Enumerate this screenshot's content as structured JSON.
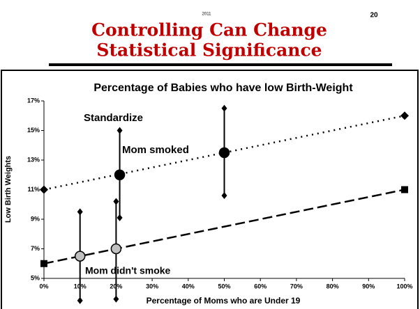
{
  "header": {
    "year": "2011",
    "page_number": "20",
    "title_lines": [
      "Controlling Can Change",
      "Statistical Significance"
    ]
  },
  "chart_data": {
    "type": "line",
    "title": "Percentage of Babies who have low Birth-Weight",
    "x_label": "Percentage of Moms who are Under 19",
    "y_label": "Low Birth Weights",
    "annotations": [
      "Standardize",
      "Mom smoked",
      "Mom didn't smoke"
    ],
    "xlim": [
      0,
      100
    ],
    "xticks": [
      {
        "value": 0,
        "label": "0%"
      },
      {
        "value": 10,
        "label": "10%"
      },
      {
        "value": 20,
        "label": "20%"
      },
      {
        "value": 30,
        "label": "30%"
      },
      {
        "value": 40,
        "label": "40%"
      },
      {
        "value": 50,
        "label": "50%"
      },
      {
        "value": 60,
        "label": "60%"
      },
      {
        "value": 70,
        "label": "70%"
      },
      {
        "value": 80,
        "label": "80%"
      },
      {
        "value": 90,
        "label": "90%"
      },
      {
        "value": 100,
        "label": "100%"
      }
    ],
    "ylim": [
      5,
      17
    ],
    "yticks": [
      {
        "value": 5,
        "label": "5%"
      },
      {
        "value": 7,
        "label": "7%"
      },
      {
        "value": 9,
        "label": "9%"
      },
      {
        "value": 11,
        "label": "11%"
      },
      {
        "value": 13,
        "label": "13%"
      },
      {
        "value": 15,
        "label": "15%"
      },
      {
        "value": 17,
        "label": "17%"
      }
    ],
    "series": [
      {
        "color": "#000000",
        "style": "dotted",
        "marker": "diamond",
        "x": [
          0,
          100
        ],
        "values": [
          11,
          16
        ]
      },
      {
        "color": "#000000",
        "style": "dashed",
        "marker": "square",
        "x": [
          0,
          100
        ],
        "values": [
          6,
          11
        ]
      }
    ],
    "estimates": [
      {
        "color": "#000000",
        "x": [
          21,
          50
        ],
        "values": [
          12,
          13.5
        ],
        "lows": [
          9.1,
          10.6
        ],
        "highs": [
          15,
          16.5
        ]
      },
      {
        "color": "#c0c0c0",
        "x": [
          10,
          20
        ],
        "values": [
          6.5,
          7
        ],
        "lows": [
          3.5,
          3.6
        ],
        "highs": [
          9.5,
          10.2
        ]
      }
    ]
  }
}
